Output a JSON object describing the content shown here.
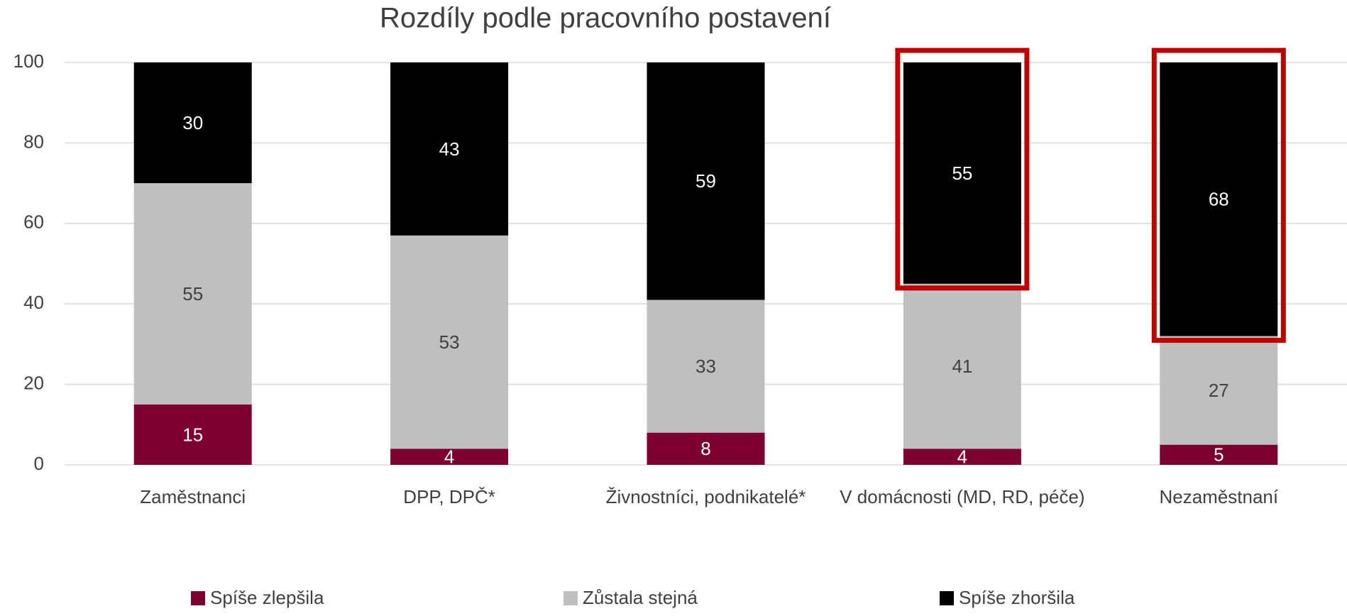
{
  "chart_data": {
    "type": "stacked_bar",
    "title": "Rozdíly podle pracovního postavení",
    "categories": [
      "Zaměstnanci",
      "DPP, DPČ*",
      "Živnostníci, podnikatelé*",
      "V domácnosti (MD, RD, péče)",
      "Nezaměstnaní"
    ],
    "series": [
      {
        "name": "Spíše zlepšila",
        "color": "#7b0031",
        "values": [
          15,
          4,
          8,
          4,
          5
        ]
      },
      {
        "name": "Zůstala stejná",
        "color": "#bfbfbf",
        "values": [
          55,
          53,
          33,
          41,
          27
        ]
      },
      {
        "name": "Spíše zhoršila",
        "color": "#000000",
        "values": [
          30,
          43,
          59,
          55,
          68
        ]
      }
    ],
    "ylim": [
      0,
      100
    ],
    "yticks": [
      0,
      20,
      40,
      60,
      80,
      100
    ],
    "grid": true,
    "legend": "bottom",
    "highlight": [
      3,
      4
    ],
    "highlight_color": "#c00000"
  }
}
